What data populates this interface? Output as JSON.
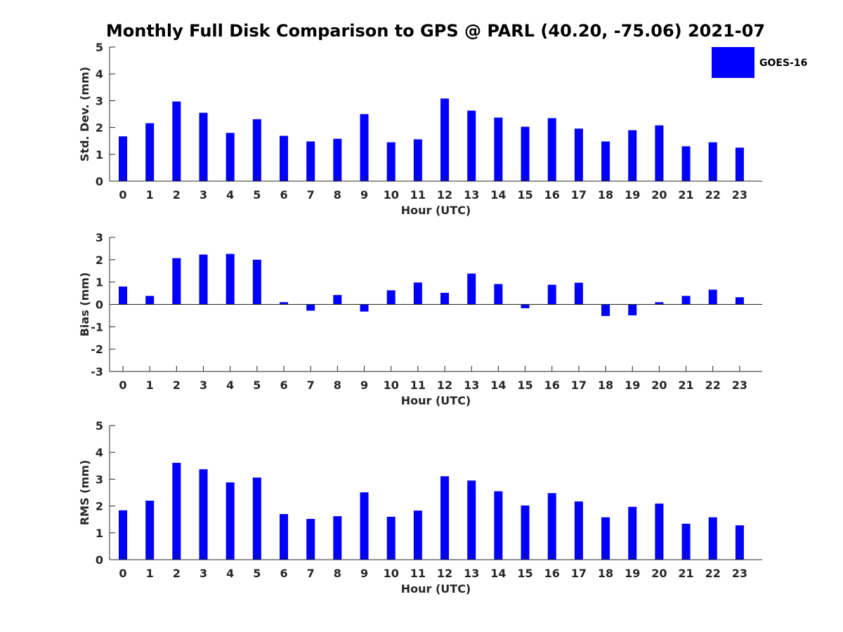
{
  "title": "Monthly Full Disk Comparison to GPS @ PARL (40.20, -75.06) 2021-07",
  "colors": {
    "bar": "#0000ff",
    "axis": "#262626"
  },
  "legend": {
    "label": "GOES-16",
    "placement": "top-right"
  },
  "chart_data": [
    {
      "type": "bar",
      "xlabel": "Hour (UTC)",
      "ylabel": "Std. Dev. (mm)",
      "ylim": [
        0,
        5
      ],
      "yticks": [
        0,
        1,
        2,
        3,
        4,
        5
      ],
      "grid": false,
      "categories": [
        "0",
        "1",
        "2",
        "3",
        "4",
        "5",
        "6",
        "7",
        "8",
        "9",
        "10",
        "11",
        "12",
        "13",
        "14",
        "15",
        "16",
        "17",
        "18",
        "19",
        "20",
        "21",
        "22",
        "23"
      ],
      "series": [
        {
          "name": "GOES-16",
          "values": [
            1.67,
            2.16,
            2.97,
            2.55,
            1.8,
            2.31,
            1.69,
            1.48,
            1.58,
            2.5,
            1.45,
            1.56,
            3.08,
            2.63,
            2.37,
            2.03,
            2.35,
            1.96,
            1.48,
            1.9,
            2.08,
            1.3,
            1.45,
            1.25
          ]
        }
      ]
    },
    {
      "type": "bar",
      "xlabel": "Hour (UTC)",
      "ylabel": "Bias (mm)",
      "ylim": [
        -3,
        3
      ],
      "yticks": [
        -3,
        -2,
        -1,
        0,
        1,
        2,
        3
      ],
      "grid": false,
      "categories": [
        "0",
        "1",
        "2",
        "3",
        "4",
        "5",
        "6",
        "7",
        "8",
        "9",
        "10",
        "11",
        "12",
        "13",
        "14",
        "15",
        "16",
        "17",
        "18",
        "19",
        "20",
        "21",
        "22",
        "23"
      ],
      "series": [
        {
          "name": "GOES-16",
          "values": [
            0.8,
            0.38,
            2.07,
            2.23,
            2.26,
            2.0,
            0.1,
            -0.28,
            0.42,
            -0.32,
            0.63,
            0.98,
            0.52,
            1.38,
            0.91,
            -0.17,
            0.88,
            0.97,
            -0.52,
            -0.49,
            0.1,
            0.38,
            0.66,
            0.32
          ]
        }
      ]
    },
    {
      "type": "bar",
      "xlabel": "Hour (UTC)",
      "ylabel": "RMS (mm)",
      "ylim": [
        0,
        5
      ],
      "yticks": [
        0,
        1,
        2,
        3,
        4,
        5
      ],
      "grid": false,
      "categories": [
        "0",
        "1",
        "2",
        "3",
        "4",
        "5",
        "6",
        "7",
        "8",
        "9",
        "10",
        "11",
        "12",
        "13",
        "14",
        "15",
        "16",
        "17",
        "18",
        "19",
        "20",
        "21",
        "22",
        "23"
      ],
      "series": [
        {
          "name": "GOES-16",
          "values": [
            1.84,
            2.2,
            3.61,
            3.37,
            2.88,
            3.06,
            1.7,
            1.52,
            1.62,
            2.51,
            1.6,
            1.83,
            3.11,
            2.95,
            2.55,
            2.02,
            2.48,
            2.17,
            1.58,
            1.97,
            2.09,
            1.34,
            1.58,
            1.28
          ]
        }
      ]
    }
  ]
}
